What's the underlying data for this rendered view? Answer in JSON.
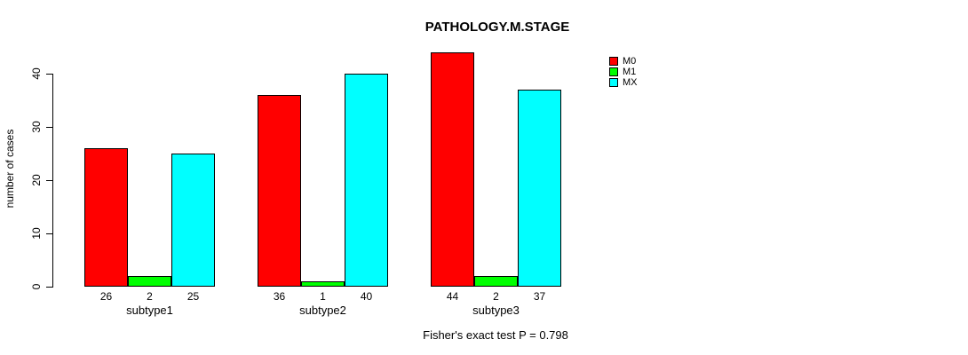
{
  "chart_data": {
    "type": "bar",
    "title": "PATHOLOGY.M.STAGE",
    "ylabel": "number of cases",
    "xlabel": "",
    "categories": [
      "subtype1",
      "subtype2",
      "subtype3"
    ],
    "series": [
      {
        "name": "M0",
        "color": "#FF0000",
        "values": [
          26,
          36,
          44
        ]
      },
      {
        "name": "M1",
        "color": "#00FF00",
        "values": [
          2,
          1,
          2
        ]
      },
      {
        "name": "MX",
        "color": "#00FFFF",
        "values": [
          25,
          40,
          37
        ]
      }
    ],
    "yticks": [
      0,
      10,
      20,
      30,
      40
    ],
    "ylim": [
      0,
      44
    ],
    "grid": false,
    "legend_position": "top-right",
    "bar_value_labels": [
      [
        26,
        2,
        25
      ],
      [
        36,
        1,
        40
      ],
      [
        44,
        2,
        37
      ]
    ],
    "annotation": "Fisher's exact test P = 0.798"
  }
}
